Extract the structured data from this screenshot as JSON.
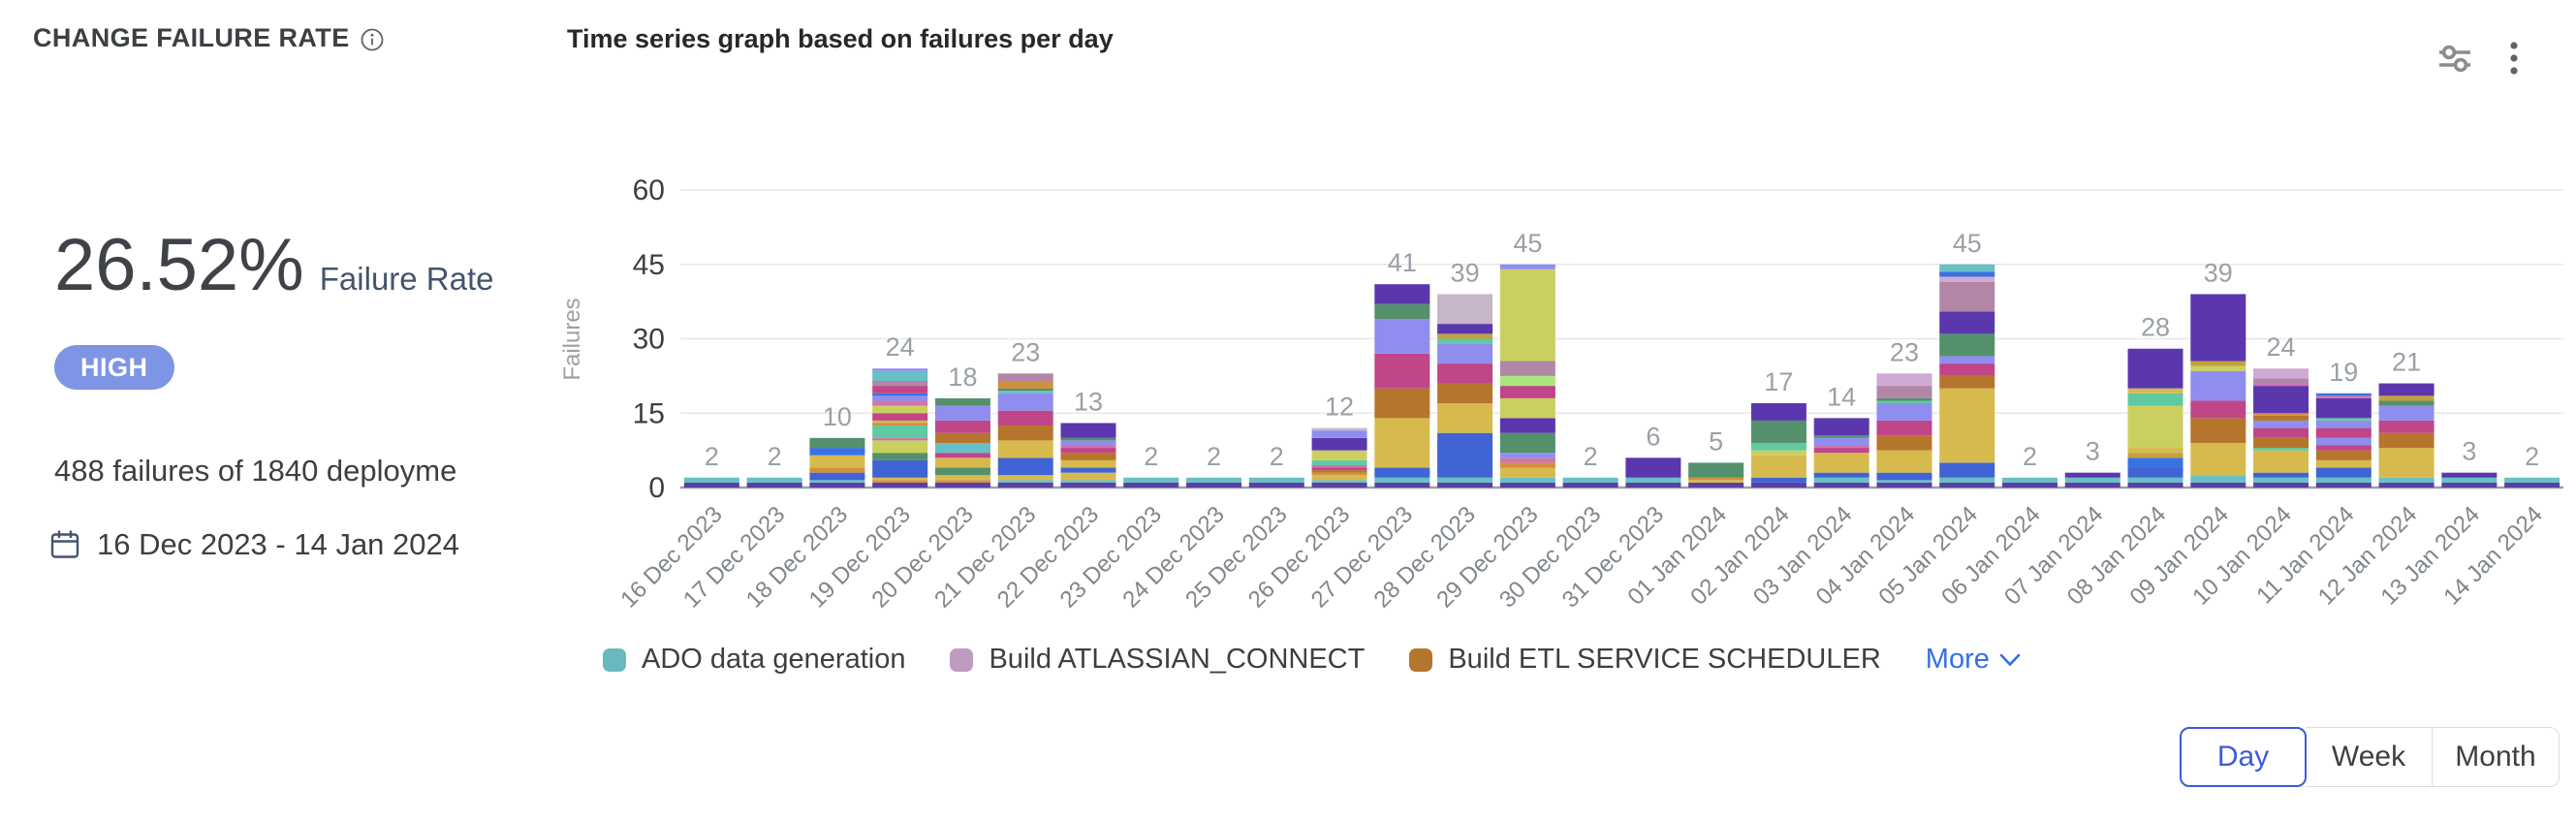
{
  "header": {
    "title": "CHANGE FAILURE RATE",
    "subtitle": "Time series graph based on failures per day"
  },
  "stats": {
    "rate_value": "26.52%",
    "rate_label": "Failure Rate",
    "severity": "HIGH",
    "severity_color": "#7e95e5",
    "summary": "488 failures of 1840 deployme",
    "date_range": "16 Dec 2023 - 14 Jan 2024"
  },
  "chart_data": {
    "type": "bar",
    "stacked": true,
    "title": "Time series graph based on failures per day",
    "xlabel": "",
    "ylabel": "Failures",
    "ylim": [
      0,
      60
    ],
    "yticks": [
      0,
      15,
      30,
      45,
      60
    ],
    "grid": true,
    "legend_position": "bottom",
    "categories": [
      "16 Dec 2023",
      "17 Dec 2023",
      "18 Dec 2023",
      "19 Dec 2023",
      "20 Dec 2023",
      "21 Dec 2023",
      "22 Dec 2023",
      "23 Dec 2023",
      "24 Dec 2023",
      "25 Dec 2023",
      "26 Dec 2023",
      "27 Dec 2023",
      "28 Dec 2023",
      "29 Dec 2023",
      "30 Dec 2023",
      "31 Dec 2023",
      "01 Jan 2024",
      "02 Jan 2024",
      "03 Jan 2024",
      "04 Jan 2024",
      "05 Jan 2024",
      "06 Jan 2024",
      "07 Jan 2024",
      "08 Jan 2024",
      "09 Jan 2024",
      "10 Jan 2024",
      "11 Jan 2024",
      "12 Jan 2024",
      "13 Jan 2024",
      "14 Jan 2024"
    ],
    "totals": [
      2,
      2,
      10,
      24,
      18,
      23,
      13,
      2,
      2,
      2,
      12,
      41,
      39,
      45,
      2,
      6,
      5,
      17,
      14,
      23,
      45,
      2,
      3,
      28,
      39,
      24,
      19,
      21,
      3,
      2
    ],
    "palette": {
      "purple": "#5B3FA7",
      "deepPurple": "#5B37AE",
      "teal": "#68BFC5",
      "tealGreen": "#5FC9A2",
      "blue": "#4164D4",
      "blue2": "#3A72E2",
      "periwinkle": "#8F8EEE",
      "yellow": "#D7BA4D",
      "darkYellow": "#C3A23D",
      "orange": "#D28F3E",
      "brown": "#B5752C",
      "magenta": "#C04687",
      "pink": "#CF74AB",
      "mauve": "#B286A6",
      "lavender": "#C5B6CA",
      "lilac": "#CFAAD4",
      "lime": "#C9D05F",
      "lightGreen": "#A9E67E",
      "green": "#54906B"
    },
    "bars": [
      [
        [
          "purple",
          1
        ],
        [
          "teal",
          1
        ]
      ],
      [
        [
          "purple",
          1
        ],
        [
          "teal",
          1
        ]
      ],
      [
        [
          "purple",
          1
        ],
        [
          "teal",
          0.5
        ],
        [
          "blue",
          1.5
        ],
        [
          "orange",
          1
        ],
        [
          "yellow",
          2.5
        ],
        [
          "blue2",
          1.5
        ],
        [
          "green",
          2
        ]
      ],
      [
        [
          "purple",
          1
        ],
        [
          "orange",
          0.5
        ],
        [
          "yellow",
          0.5
        ],
        [
          "blue",
          3.5
        ],
        [
          "green",
          1.5
        ],
        [
          "lime",
          2.5
        ],
        [
          "pink",
          0.5
        ],
        [
          "tealGreen",
          2.5
        ],
        [
          "orange",
          0.5
        ],
        [
          "yellow",
          0.5
        ],
        [
          "magenta",
          1.5
        ],
        [
          "lime",
          1.5
        ],
        [
          "pink",
          1
        ],
        [
          "periwinkle",
          1
        ],
        [
          "blue2",
          0.5
        ],
        [
          "magenta",
          1.5
        ],
        [
          "mauve",
          1
        ],
        [
          "teal",
          2
        ],
        [
          "periwinkle",
          0.5
        ]
      ],
      [
        [
          "purple",
          1
        ],
        [
          "orange",
          0.5
        ],
        [
          "yellow",
          1
        ],
        [
          "green",
          1.5
        ],
        [
          "yellow",
          2
        ],
        [
          "magenta",
          1
        ],
        [
          "teal",
          2
        ],
        [
          "brown",
          2
        ],
        [
          "magenta",
          2.5
        ],
        [
          "periwinkle",
          3
        ],
        [
          "green",
          1.5
        ]
      ],
      [
        [
          "purple",
          1
        ],
        [
          "teal",
          0.5
        ],
        [
          "yellow",
          1
        ],
        [
          "blue",
          3.5
        ],
        [
          "yellow",
          3.5
        ],
        [
          "brown",
          3
        ],
        [
          "magenta",
          3
        ],
        [
          "periwinkle",
          3.5
        ],
        [
          "teal",
          0.5
        ],
        [
          "green",
          0.5
        ],
        [
          "orange",
          1.5
        ],
        [
          "mauve",
          1.5
        ]
      ],
      [
        [
          "purple",
          1
        ],
        [
          "teal",
          0.5
        ],
        [
          "yellow",
          1.5
        ],
        [
          "blue",
          1
        ],
        [
          "yellow",
          1.5
        ],
        [
          "brown",
          1.5
        ],
        [
          "magenta",
          1
        ],
        [
          "pink",
          0.5
        ],
        [
          "periwinkle",
          1
        ],
        [
          "green",
          0.5
        ],
        [
          "deepPurple",
          3
        ]
      ],
      [
        [
          "purple",
          1
        ],
        [
          "teal",
          1
        ]
      ],
      [
        [
          "purple",
          1
        ],
        [
          "teal",
          1
        ]
      ],
      [
        [
          "purple",
          1
        ],
        [
          "teal",
          1
        ]
      ],
      [
        [
          "purple",
          1
        ],
        [
          "teal",
          0.5
        ],
        [
          "yellow",
          1
        ],
        [
          "orange",
          0.5
        ],
        [
          "brown",
          0.5
        ],
        [
          "magenta",
          0.5
        ],
        [
          "pink",
          0.5
        ],
        [
          "tealGreen",
          1
        ],
        [
          "lime",
          2
        ],
        [
          "deepPurple",
          2.5
        ],
        [
          "periwinkle",
          1.5
        ],
        [
          "lavender",
          0.5
        ]
      ],
      [
        [
          "purple",
          1
        ],
        [
          "teal",
          1
        ],
        [
          "blue",
          2
        ],
        [
          "yellow",
          10
        ],
        [
          "brown",
          6
        ],
        [
          "magenta",
          7
        ],
        [
          "periwinkle",
          7
        ],
        [
          "green",
          3
        ],
        [
          "deepPurple",
          4
        ]
      ],
      [
        [
          "purple",
          1
        ],
        [
          "teal",
          1
        ],
        [
          "blue",
          9
        ],
        [
          "yellow",
          6
        ],
        [
          "brown",
          4
        ],
        [
          "magenta",
          4
        ],
        [
          "periwinkle",
          4
        ],
        [
          "tealGreen",
          1
        ],
        [
          "darkYellow",
          1
        ],
        [
          "deepPurple",
          2
        ],
        [
          "lavender",
          6
        ]
      ],
      [
        [
          "purple",
          1
        ],
        [
          "teal",
          1
        ],
        [
          "yellow",
          2
        ],
        [
          "orange",
          1
        ],
        [
          "pink",
          1
        ],
        [
          "periwinkle",
          1
        ],
        [
          "green",
          4
        ],
        [
          "deepPurple",
          3
        ],
        [
          "lime",
          4
        ],
        [
          "magenta",
          2.5
        ],
        [
          "lightGreen",
          2
        ],
        [
          "mauve",
          3
        ],
        [
          "lime",
          18.5
        ],
        [
          "periwinkle",
          1
        ]
      ],
      [
        [
          "purple",
          1
        ],
        [
          "teal",
          1
        ]
      ],
      [
        [
          "purple",
          1
        ],
        [
          "teal",
          1
        ],
        [
          "deepPurple",
          4
        ]
      ],
      [
        [
          "purple",
          1
        ],
        [
          "yellow",
          0.5
        ],
        [
          "orange",
          0.5
        ],
        [
          "green",
          3
        ]
      ],
      [
        [
          "purple",
          1
        ],
        [
          "blue",
          1
        ],
        [
          "yellow",
          4.5
        ],
        [
          "lime",
          1
        ],
        [
          "tealGreen",
          1.5
        ],
        [
          "green",
          4.5
        ],
        [
          "deepPurple",
          3.5
        ]
      ],
      [
        [
          "purple",
          1
        ],
        [
          "teal",
          1
        ],
        [
          "blue",
          1
        ],
        [
          "yellow",
          4
        ],
        [
          "magenta",
          1
        ],
        [
          "pink",
          0.5
        ],
        [
          "periwinkle",
          1.5
        ],
        [
          "green",
          0.5
        ],
        [
          "deepPurple",
          3.5
        ]
      ],
      [
        [
          "purple",
          1
        ],
        [
          "teal",
          0.5
        ],
        [
          "blue",
          1.5
        ],
        [
          "yellow",
          4.5
        ],
        [
          "brown",
          3
        ],
        [
          "magenta",
          3
        ],
        [
          "periwinkle",
          3.5
        ],
        [
          "tealGreen",
          0.5
        ],
        [
          "green",
          0.5
        ],
        [
          "mauve",
          2.5
        ],
        [
          "lilac",
          2.5
        ]
      ],
      [
        [
          "purple",
          1
        ],
        [
          "teal",
          1
        ],
        [
          "blue",
          3
        ],
        [
          "yellow",
          15
        ],
        [
          "brown",
          2.5
        ],
        [
          "magenta",
          2.5
        ],
        [
          "periwinkle",
          1.5
        ],
        [
          "green",
          4.5
        ],
        [
          "deepPurple",
          4.5
        ],
        [
          "mauve",
          6
        ],
        [
          "lilac",
          1
        ],
        [
          "blue2",
          1
        ],
        [
          "teal",
          1.5
        ]
      ],
      [
        [
          "purple",
          1
        ],
        [
          "teal",
          1
        ]
      ],
      [
        [
          "purple",
          1
        ],
        [
          "teal",
          1
        ],
        [
          "deepPurple",
          1
        ]
      ],
      [
        [
          "purple",
          1
        ],
        [
          "teal",
          1
        ],
        [
          "blue",
          2
        ],
        [
          "blue2",
          2
        ],
        [
          "darkYellow",
          1
        ],
        [
          "yellow",
          1
        ],
        [
          "lime",
          8.5
        ],
        [
          "tealGreen",
          2.5
        ],
        [
          "yellow",
          1
        ],
        [
          "deepPurple",
          8
        ]
      ],
      [
        [
          "purple",
          1
        ],
        [
          "teal",
          1.5
        ],
        [
          "yellow",
          6.5
        ],
        [
          "brown",
          5
        ],
        [
          "magenta",
          3.5
        ],
        [
          "periwinkle",
          6
        ],
        [
          "lime",
          1
        ],
        [
          "darkYellow",
          1
        ],
        [
          "deepPurple",
          13.5
        ]
      ],
      [
        [
          "purple",
          1
        ],
        [
          "teal",
          1
        ],
        [
          "blue",
          1
        ],
        [
          "yellow",
          4.5
        ],
        [
          "tealGreen",
          0.5
        ],
        [
          "brown",
          2
        ],
        [
          "magenta",
          2
        ],
        [
          "periwinkle",
          1.5
        ],
        [
          "brown",
          1
        ],
        [
          "orange",
          0.5
        ],
        [
          "deepPurple",
          5.5
        ],
        [
          "pink",
          0.5
        ],
        [
          "mauve",
          1
        ],
        [
          "lilac",
          2
        ]
      ],
      [
        [
          "purple",
          1
        ],
        [
          "teal",
          1
        ],
        [
          "blue",
          2
        ],
        [
          "yellow",
          1.5
        ],
        [
          "brown",
          2
        ],
        [
          "magenta",
          1
        ],
        [
          "periwinkle",
          1.5
        ],
        [
          "magenta",
          2
        ],
        [
          "periwinkle",
          1.5
        ],
        [
          "tealGreen",
          0.5
        ],
        [
          "deepPurple",
          4
        ],
        [
          "pink",
          0.5
        ],
        [
          "blue2",
          0.5
        ]
      ],
      [
        [
          "purple",
          1
        ],
        [
          "teal",
          1
        ],
        [
          "yellow",
          6
        ],
        [
          "brown",
          3
        ],
        [
          "magenta",
          2.5
        ],
        [
          "periwinkle",
          3
        ],
        [
          "green",
          1
        ],
        [
          "darkYellow",
          1
        ],
        [
          "deepPurple",
          2.5
        ]
      ],
      [
        [
          "purple",
          1
        ],
        [
          "teal",
          1
        ],
        [
          "deepPurple",
          1
        ]
      ],
      [
        [
          "purple",
          1
        ],
        [
          "teal",
          1
        ]
      ]
    ],
    "axis_colors": {
      "ytick": "#3c4043",
      "xtick": "#80868b",
      "bar_label": "#9aa0a6",
      "grid": "#e8e8e8",
      "baseline": "#9aa0a6",
      "ylabel": "#9aa0a6"
    }
  },
  "legend": {
    "items": [
      {
        "label": "ADO data generation",
        "color": "#68B9BF"
      },
      {
        "label": "Build ATLASSIAN_CONNECT",
        "color": "#BF9AC1"
      },
      {
        "label": "Build ETL SERVICE SCHEDULER",
        "color": "#B5752C"
      }
    ],
    "more_label": "More",
    "more_color": "#3470E5"
  },
  "granularity": {
    "options": [
      "Day",
      "Week",
      "Month"
    ],
    "selected": "Day",
    "selected_color": "#3c5bd9"
  }
}
